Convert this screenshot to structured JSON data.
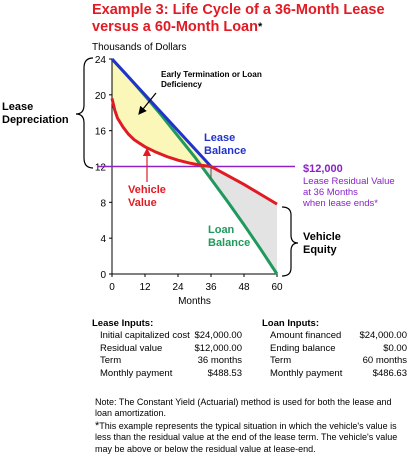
{
  "title": {
    "line1": "Example 3: Life Cycle of a 36-Month Lease",
    "line2": "versus a 60-Month Loan",
    "marker": "*"
  },
  "colors": {
    "title": "#e01b24",
    "lease_balance": "#2233cc",
    "vehicle_value": "#e01b24",
    "loan_balance": "#1f9a5c",
    "residual": "#8a22c8",
    "depreciation_fill": "#fbf7b8",
    "equity_fill": "#e3e3e3"
  },
  "chart_data": {
    "type": "line",
    "ylabel": "Thousands of Dollars",
    "xlabel": "Months",
    "xlim": [
      0,
      60
    ],
    "ylim": [
      0,
      24
    ],
    "x_ticks": [
      "0",
      "12",
      "24",
      "36",
      "48",
      "60"
    ],
    "y_ticks": [
      "0",
      "4",
      "8",
      "12",
      "16",
      "20",
      "24"
    ],
    "series": [
      {
        "name": "Lease Balance",
        "color": "#2233cc",
        "x": [
          0,
          36
        ],
        "y": [
          24,
          12
        ]
      },
      {
        "name": "Vehicle Value",
        "color": "#e01b24",
        "x": [
          0,
          1,
          2,
          4,
          6,
          8,
          10,
          12,
          16,
          20,
          24,
          28,
          32,
          36,
          42,
          48,
          54,
          60
        ],
        "y": [
          19.6,
          18.3,
          17.4,
          16.4,
          15.6,
          15.0,
          14.6,
          14.2,
          13.6,
          13.1,
          12.7,
          12.4,
          12.15,
          12.0,
          11.0,
          10.0,
          8.9,
          7.8
        ]
      },
      {
        "name": "Loan Balance",
        "color": "#1f9a5c",
        "x": [
          0,
          6,
          12,
          18,
          24,
          30,
          36,
          42,
          48,
          54,
          60
        ],
        "y": [
          24,
          22.0,
          19.9,
          17.7,
          15.4,
          13.1,
          10.6,
          8.1,
          5.5,
          2.8,
          0
        ]
      },
      {
        "name": "Lease Residual Value",
        "color": "#8a22c8",
        "x": [
          0,
          60
        ],
        "y": [
          12,
          12
        ]
      }
    ],
    "labels": {
      "lease_balance_1": "Lease",
      "lease_balance_2": "Balance",
      "vehicle_value_1": "Vehicle",
      "vehicle_value_2": "Value",
      "loan_balance_1": "Loan",
      "loan_balance_2": "Balance",
      "early_termination_1": "Early Termination or Loan",
      "early_termination_2": "Deficiency",
      "lease_depreciation_1": "Lease",
      "lease_depreciation_2": "Depreciation",
      "vehicle_equity_1": "Vehicle",
      "vehicle_equity_2": "Equity",
      "residual_amount": "$12,000",
      "residual_1": "Lease Residual Value",
      "residual_2": "at 36 Months",
      "residual_3": "when lease ends*"
    }
  },
  "lease_inputs": {
    "heading": "Lease Inputs:",
    "rows": [
      {
        "label": "Initial capitalized cost",
        "value": "$24,000.00"
      },
      {
        "label": "Residual value",
        "value": "$12,000.00"
      },
      {
        "label": "Term",
        "value": "36 months"
      },
      {
        "label": "Monthly payment",
        "value": "$488.53"
      }
    ]
  },
  "loan_inputs": {
    "heading": "Loan Inputs:",
    "rows": [
      {
        "label": "Amount financed",
        "value": "$24,000.00"
      },
      {
        "label": "Ending balance",
        "value": "$0.00"
      },
      {
        "label": "Term",
        "value": "60 months"
      },
      {
        "label": "Monthly payment",
        "value": "$486.63"
      }
    ]
  },
  "note": "Note: The Constant Yield (Actuarial) method is used for both the lease and loan amortization.",
  "footnote": {
    "marker": "*",
    "text": "This example represents the typical situation in which the vehicle's value is less than the residual value at the end of the lease term. The vehicle's value may be above or below the residual value at lease-end."
  }
}
